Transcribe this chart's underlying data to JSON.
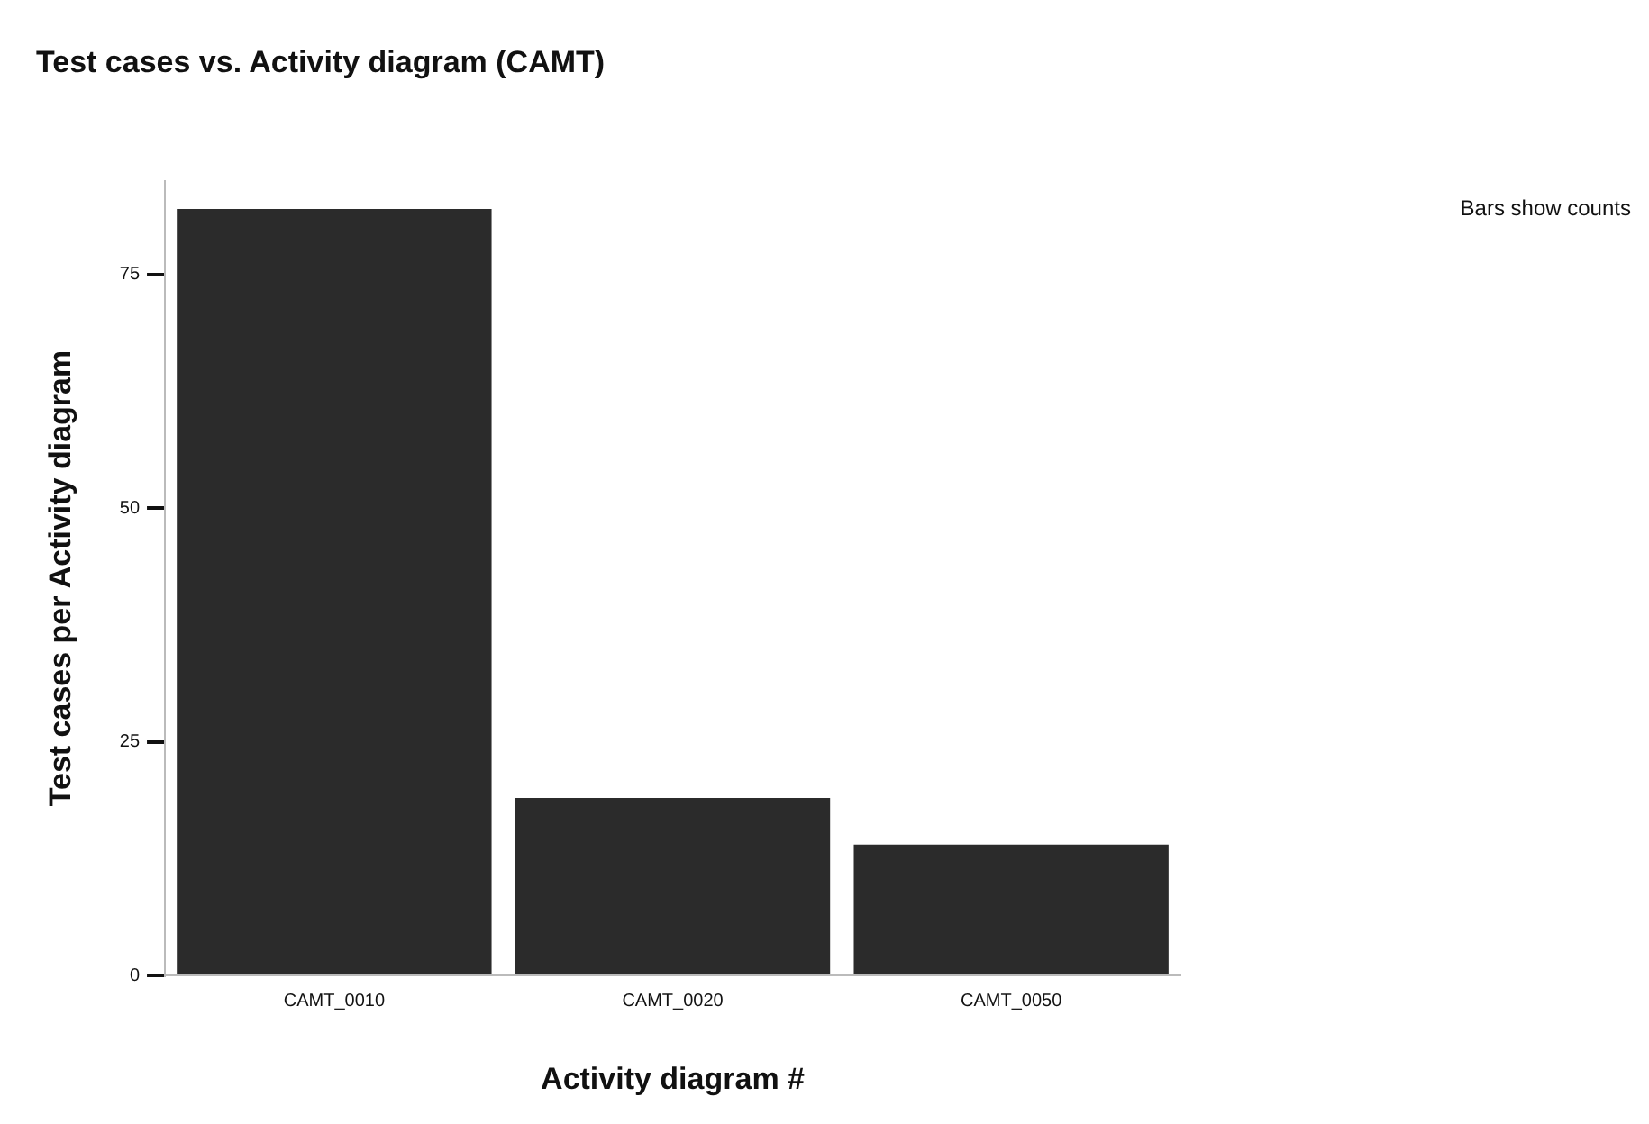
{
  "chart_data": {
    "type": "bar",
    "title": "Test cases vs. Activity diagram (CAMT)",
    "xlabel": "Activity diagram #",
    "ylabel": "Test cases per Activity diagram",
    "categories": [
      "CAMT_0010",
      "CAMT_0020",
      "CAMT_0050"
    ],
    "values": [
      82,
      19,
      14
    ],
    "color": "#2b2b2b",
    "ylim": [
      0,
      85
    ],
    "yticks": [
      0,
      25,
      50,
      75
    ],
    "grid": false,
    "annotations": [
      "Bars show counts"
    ]
  }
}
